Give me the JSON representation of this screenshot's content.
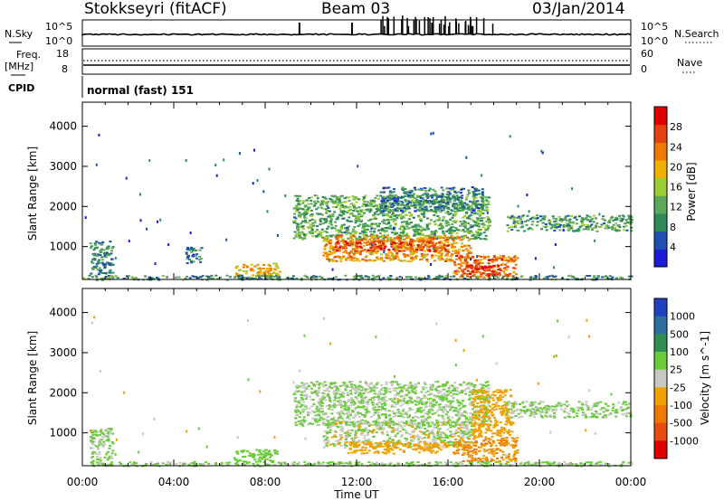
{
  "header": {
    "station": "Stokkseyri (fitACF)",
    "beam": "Beam 03",
    "date": "03/Jan/2014"
  },
  "status_panel": {
    "nsky_label": "N.Sky",
    "nsearch_label": "N.Search",
    "freq_label_1": "Freq.",
    "freq_label_2": "[MHz]",
    "nave_label": "Nave",
    "cpid_label": "CPID",
    "cpid_value": "normal (fast) 151",
    "noise_tick_top": "10^5",
    "noise_tick_bottom": "10^0",
    "freq_ticks_left": [
      "18",
      "8"
    ],
    "nave_ticks_right": [
      "60",
      "0"
    ]
  },
  "colors": {
    "power_scale": [
      "#1a1ad8",
      "#1f4fb0",
      "#2e8b57",
      "#5aa85a",
      "#9acd32",
      "#f0b000",
      "#f07a00",
      "#e64010",
      "#e00000"
    ],
    "velocity_scale": [
      "#2040c0",
      "#2f6f9f",
      "#2f8f4f",
      "#6acb3a",
      "#c8c8c4",
      "#f0a000",
      "#f07800",
      "#e84a10",
      "#e00000"
    ]
  },
  "chart_data": [
    {
      "type": "heatmap",
      "title": "Power",
      "xlabel": "Time UT",
      "ylabel": "Slant Range [km]",
      "xlim": [
        "00:00",
        "00:00"
      ],
      "x_ticks": [
        "00:00",
        "04:00",
        "08:00",
        "12:00",
        "16:00",
        "20:00",
        "00:00"
      ],
      "ylim": [
        180,
        4600
      ],
      "y_ticks": [
        1000,
        2000,
        3000,
        4000
      ],
      "colorbar": {
        "label": "Power [dB]",
        "ticks": [
          4,
          8,
          12,
          16,
          20,
          24,
          28
        ],
        "range": [
          0,
          32
        ]
      },
      "regions": [
        {
          "t0": 0.3,
          "t1": 1.3,
          "r0": 250,
          "r1": 1150,
          "value": 9
        },
        {
          "t0": 4.5,
          "t1": 5.2,
          "r0": 600,
          "r1": 1000,
          "value": 8
        },
        {
          "t0": 6.6,
          "t1": 8.6,
          "r0": 280,
          "r1": 600,
          "value": 20
        },
        {
          "t0": 0.0,
          "t1": 24.0,
          "r0": 190,
          "r1": 300,
          "value": 10
        },
        {
          "t0": 9.2,
          "t1": 17.8,
          "r0": 1200,
          "r1": 2300,
          "value": 12
        },
        {
          "t0": 10.5,
          "t1": 17.0,
          "r0": 650,
          "r1": 1300,
          "value": 22
        },
        {
          "t0": 11.0,
          "t1": 16.0,
          "r0": 900,
          "r1": 1200,
          "value": 26
        },
        {
          "t0": 16.2,
          "t1": 19.0,
          "r0": 250,
          "r1": 800,
          "value": 24
        },
        {
          "t0": 16.8,
          "t1": 18.2,
          "r0": 300,
          "r1": 550,
          "value": 29
        },
        {
          "t0": 18.5,
          "t1": 24.0,
          "r0": 1400,
          "r1": 1800,
          "value": 11
        },
        {
          "t0": 13.0,
          "t1": 17.5,
          "r0": 1900,
          "r1": 2500,
          "value": 8
        }
      ]
    },
    {
      "type": "heatmap",
      "title": "Velocity",
      "xlabel": "Time UT",
      "ylabel": "Slant Range [km]",
      "xlim": [
        "00:00",
        "00:00"
      ],
      "x_ticks": [
        "00:00",
        "04:00",
        "08:00",
        "12:00",
        "16:00",
        "20:00",
        "00:00"
      ],
      "ylim": [
        180,
        4600
      ],
      "y_ticks": [
        1000,
        2000,
        3000,
        4000
      ],
      "colorbar": {
        "label": "Velocity [m s^-1]",
        "ticks": [
          1000,
          500,
          100,
          25,
          -25,
          -100,
          -500,
          -1000
        ]
      },
      "regions": [
        {
          "t0": 0.3,
          "t1": 1.3,
          "r0": 250,
          "r1": 1150,
          "value": 10
        },
        {
          "t0": 0.0,
          "t1": 24.0,
          "r0": 190,
          "r1": 300,
          "value": 60
        },
        {
          "t0": 6.6,
          "t1": 8.6,
          "r0": 300,
          "r1": 600,
          "value": 120
        },
        {
          "t0": 9.2,
          "t1": 17.8,
          "r0": 1200,
          "r1": 2300,
          "value": 0
        },
        {
          "t0": 10.5,
          "t1": 17.0,
          "r0": 650,
          "r1": 1300,
          "value": -20
        },
        {
          "t0": 11.5,
          "t1": 16.0,
          "r0": 500,
          "r1": 800,
          "value": -150
        },
        {
          "t0": 16.2,
          "t1": 19.0,
          "r0": 300,
          "r1": 900,
          "value": -300
        },
        {
          "t0": 17.0,
          "t1": 18.8,
          "r0": 900,
          "r1": 2100,
          "value": -200
        },
        {
          "t0": 18.5,
          "t1": 24.0,
          "r0": 1400,
          "r1": 1800,
          "value": 0
        }
      ]
    }
  ]
}
